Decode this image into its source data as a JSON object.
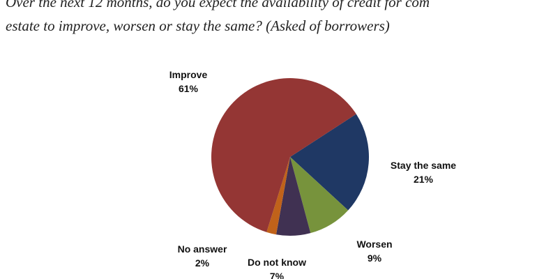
{
  "chart_data": {
    "type": "pie",
    "title_lines": [
      "Over the next 12 months, do you expect the availability of credit for com",
      "estate to improve, worsen or stay the same? (Asked of borrowers)"
    ],
    "categories": [
      "Improve",
      "Stay the same",
      "Worsen",
      "Do not know",
      "No answer"
    ],
    "values": [
      61,
      21,
      9,
      7,
      2
    ],
    "value_labels": [
      "61%",
      "21%",
      "9%",
      "7%",
      "2%"
    ],
    "colors": [
      "#943634",
      "#1f3864",
      "#77933c",
      "#403152",
      "#c0621a"
    ]
  }
}
